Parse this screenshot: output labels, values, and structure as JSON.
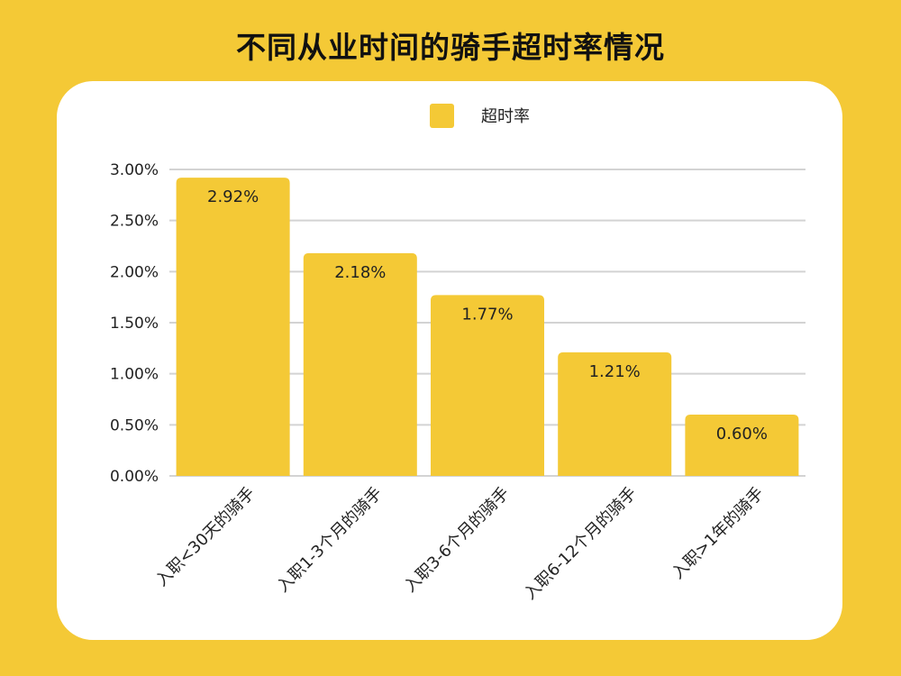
{
  "title": "不同从业时间的骑手超时率情况",
  "legend": {
    "label": "超时率",
    "color": "#F4C936"
  },
  "chart_data": {
    "type": "bar",
    "title": "不同从业时间的骑手超时率情况",
    "categories": [
      "入职<30天的骑手",
      "入职1-3个月的骑手",
      "入职3-6个月的骑手",
      "入职6-12个月的骑手",
      "入职>1年的骑手"
    ],
    "series": [
      {
        "name": "超时率",
        "values": [
          2.92,
          2.18,
          1.77,
          1.21,
          0.6
        ],
        "labels": [
          "2.92%",
          "2.18%",
          "1.77%",
          "1.21%",
          "0.60%"
        ]
      }
    ],
    "ylim": [
      0,
      3
    ],
    "yticks": [
      "0.00%",
      "0.50%",
      "1.00%",
      "1.50%",
      "2.00%",
      "2.50%",
      "3.00%"
    ],
    "grid": true,
    "legend_position": "top",
    "colors": {
      "bar": "#F4C936",
      "background": "#F4C936",
      "card": "#FFFFFF",
      "grid": "#D3D3D3"
    }
  }
}
